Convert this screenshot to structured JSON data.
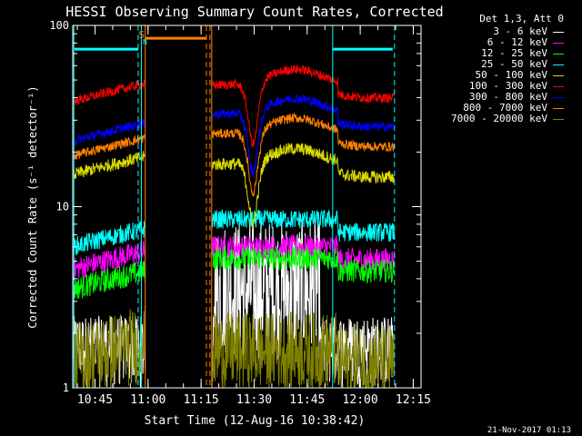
{
  "chart_data": {
    "type": "line",
    "title": "HESSI Observing Summary Count Rates, Corrected",
    "xlabel": "Start Time (12-Aug-16 10:38:42)",
    "ylabel": "Corrected Count Rate (s⁻¹ detector⁻¹)",
    "x_ticks": [
      "10:45",
      "11:00",
      "11:15",
      "11:30",
      "11:45",
      "12:00",
      "12:15"
    ],
    "x_tick_minutes": [
      6.3,
      21.3,
      36.3,
      51.3,
      66.3,
      81.3,
      96.3
    ],
    "xlim_minutes": [
      0,
      98.5
    ],
    "y_ticks": [
      "1",
      "10",
      "100"
    ],
    "ylim": [
      1,
      100
    ],
    "yscale": "log",
    "grid": false,
    "legend_position": "outside-right",
    "legend_header": "Det 1,3, Att 0",
    "markers": {
      "S_label": "S",
      "N_label": "N",
      "orange_bar_y": 85,
      "orange_bar_x": [
        20.5,
        37.8
      ],
      "cyan_bar_left_x": [
        0.5,
        18.5
      ],
      "cyan_bar_right_x": [
        73.6,
        90.5
      ],
      "cyan_bar_y": 74,
      "orange_lines_x": [
        20.5,
        39.3
      ],
      "orange_dashed_x": [
        37.8,
        38.8
      ],
      "cyan_solid_x": [
        0.3,
        19.4,
        73.5
      ],
      "cyan_dashed_x": [
        18.5,
        91.0
      ]
    },
    "series": [
      {
        "name": "3 - 6 keV",
        "color": "#ffffff",
        "level_a": 1.2,
        "level_b": 3.5,
        "noise": 0.9
      },
      {
        "name": "6 - 12 keV",
        "color": "#ff00ff",
        "level_a": 4.5,
        "level_b": 6.0,
        "noise": 0.15
      },
      {
        "name": "12 - 25 keV",
        "color": "#00ff00",
        "level_a": 3.5,
        "level_b": 5.2,
        "noise": 0.15
      },
      {
        "name": "25 - 50 keV",
        "color": "#00ffff",
        "level_a": 6.0,
        "level_b": 8.5,
        "noise": 0.12
      },
      {
        "name": "50 - 100 keV",
        "color": "#dcdc00",
        "level_a": 15.0,
        "level_b": 19.0,
        "noise": 0.08
      },
      {
        "name": "100 - 300 keV",
        "color": "#ff0000",
        "level_a": 38.0,
        "level_b": 52.0,
        "noise": 0.06
      },
      {
        "name": "300 - 800 keV",
        "color": "#0000ff",
        "level_a": 23.0,
        "level_b": 36.0,
        "noise": 0.06
      },
      {
        "name": "800 - 7000 keV",
        "color": "#ff8000",
        "level_a": 19.0,
        "level_b": 28.0,
        "noise": 0.06
      },
      {
        "name": "7000 - 20000 keV",
        "color": "#808000",
        "level_a": 1.4,
        "level_b": 1.6,
        "noise": 0.5
      }
    ]
  },
  "footer_date": "21-Nov-2017 01:13"
}
